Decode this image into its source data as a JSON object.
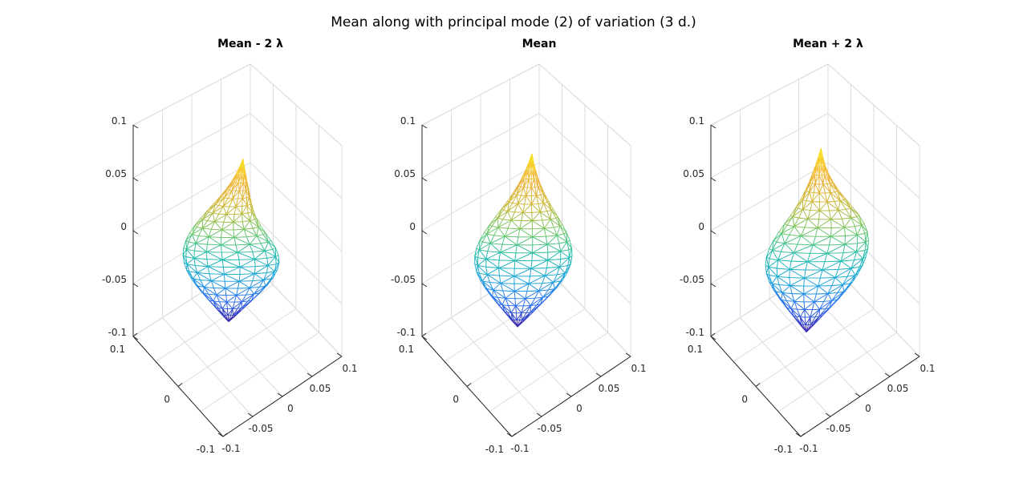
{
  "figure": {
    "title": "Mean along with principal mode (2) of variation (3 d.)"
  },
  "chart_data": [
    {
      "type": "mesh3d",
      "title": "Mean - 2 λ",
      "mode_coefficient": -2,
      "x_ticks": [
        "0.1",
        "0",
        "-0.1"
      ],
      "y_ticks": [
        "-0.1",
        "-0.05",
        "0",
        "0.05",
        "0.1"
      ],
      "z_ticks": [
        "-0.1",
        "-0.05",
        "0",
        "0.05",
        "0.1"
      ],
      "xlim": [
        -0.1,
        0.1
      ],
      "ylim": [
        -0.1,
        0.1
      ],
      "zlim": [
        -0.1,
        0.1
      ],
      "grid": true,
      "colormap": [
        "#3e26a8",
        "#2f6cf3",
        "#1ea2de",
        "#21bcb0",
        "#6cc76a",
        "#c9b938",
        "#f1b43a",
        "#f9e629"
      ]
    },
    {
      "type": "mesh3d",
      "title": "Mean",
      "mode_coefficient": 0,
      "x_ticks": [
        "0.1",
        "0",
        "-0.1"
      ],
      "y_ticks": [
        "-0.1",
        "-0.05",
        "0",
        "0.05",
        "0.1"
      ],
      "z_ticks": [
        "-0.1",
        "-0.05",
        "0",
        "0.05",
        "0.1"
      ],
      "xlim": [
        -0.1,
        0.1
      ],
      "ylim": [
        -0.1,
        0.1
      ],
      "zlim": [
        -0.1,
        0.1
      ],
      "grid": true,
      "colormap": [
        "#3e26a8",
        "#2f6cf3",
        "#1ea2de",
        "#21bcb0",
        "#6cc76a",
        "#c9b938",
        "#f1b43a",
        "#f9e629"
      ]
    },
    {
      "type": "mesh3d",
      "title": "Mean + 2 λ",
      "mode_coefficient": 2,
      "x_ticks": [
        "0.1",
        "0",
        "-0.1"
      ],
      "y_ticks": [
        "-0.1",
        "-0.05",
        "0",
        "0.05",
        "0.1"
      ],
      "z_ticks": [
        "-0.1",
        "-0.05",
        "0",
        "0.05",
        "0.1"
      ],
      "xlim": [
        -0.1,
        0.1
      ],
      "ylim": [
        -0.1,
        0.1
      ],
      "zlim": [
        -0.1,
        0.1
      ],
      "grid": true,
      "colormap": [
        "#3e26a8",
        "#2f6cf3",
        "#1ea2de",
        "#21bcb0",
        "#6cc76a",
        "#c9b938",
        "#f1b43a",
        "#f9e629"
      ]
    }
  ]
}
